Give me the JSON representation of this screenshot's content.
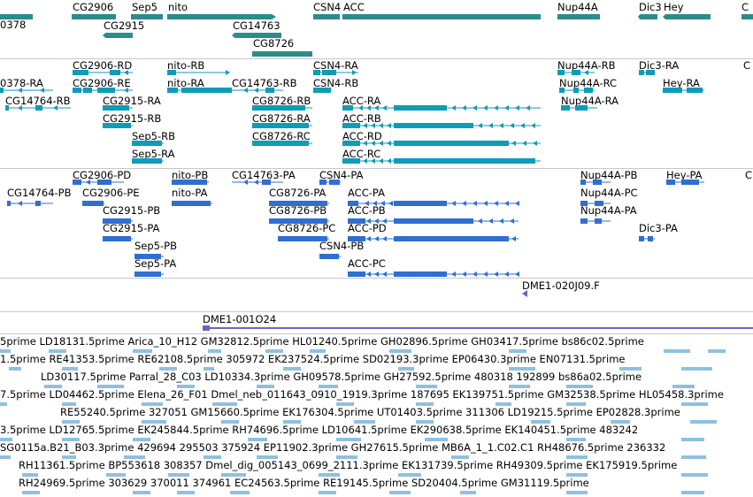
{
  "colors": {
    "gene": "#2e8b8b",
    "transcript": "#0f9cb8",
    "protein": "#2f6fd0",
    "contig": "#7060c0",
    "est": "#8fc0e0"
  },
  "tracks": {
    "genes": {
      "features": [
        {
          "label": "0378"
        },
        {
          "label": "CG2906"
        },
        {
          "label": "Sep5"
        },
        {
          "label": "nito"
        },
        {
          "label": "CSN4"
        },
        {
          "label": "ACC"
        },
        {
          "label": "Nup44A"
        },
        {
          "label": "Dic3"
        },
        {
          "label": "Hey"
        },
        {
          "label": "C"
        },
        {
          "label": "CG2915"
        },
        {
          "label": "CG14763"
        },
        {
          "label": "CG8726"
        }
      ]
    },
    "transcripts": {
      "features": [
        {
          "label": "CG2906-RD"
        },
        {
          "label": "nito-RB"
        },
        {
          "label": "CSN4-RA"
        },
        {
          "label": "Nup44A-RB"
        },
        {
          "label": "Dic3-RA"
        },
        {
          "label": "C"
        },
        {
          "label": "0378-RA"
        },
        {
          "label": "CG2906-RE"
        },
        {
          "label": "nito-RA"
        },
        {
          "label": "CG14763-RB"
        },
        {
          "label": "CSN4-RB"
        },
        {
          "label": "Nup44A-RC"
        },
        {
          "label": "Hey-RA"
        },
        {
          "label": "CG14764-RB"
        },
        {
          "label": "CG2915-RA"
        },
        {
          "label": "CG8726-RB"
        },
        {
          "label": "ACC-RA"
        },
        {
          "label": "Nup44A-RA"
        },
        {
          "label": "CG2915-RB"
        },
        {
          "label": "CG8726-RA"
        },
        {
          "label": "ACC-RB"
        },
        {
          "label": "Sep5-RB"
        },
        {
          "label": "CG8726-RC"
        },
        {
          "label": "ACC-RD"
        },
        {
          "label": "Sep5-RA"
        },
        {
          "label": "ACC-RC"
        }
      ]
    },
    "proteins": {
      "features": [
        {
          "label": "CG2906-PD"
        },
        {
          "label": "nito-PB"
        },
        {
          "label": "CG14763-PA"
        },
        {
          "label": "CSN4-PA"
        },
        {
          "label": "Nup44A-PB"
        },
        {
          "label": "Hey-PA"
        },
        {
          "label": "C"
        },
        {
          "label": "CG14764-PB"
        },
        {
          "label": "CG2906-PE"
        },
        {
          "label": "nito-PA"
        },
        {
          "label": "CG8726-PA"
        },
        {
          "label": "ACC-PA"
        },
        {
          "label": "Nup44A-PC"
        },
        {
          "label": "CG2915-PB"
        },
        {
          "label": "CG8726-PB"
        },
        {
          "label": "ACC-PB"
        },
        {
          "label": "Nup44A-PA"
        },
        {
          "label": "CG2915-PA"
        },
        {
          "label": "CG8726-PC"
        },
        {
          "label": "ACC-PD"
        },
        {
          "label": "Dic3-PA"
        },
        {
          "label": "Sep5-PB"
        },
        {
          "label": "CSN4-PB"
        },
        {
          "label": "Sep5-PA"
        },
        {
          "label": "ACC-PC"
        }
      ]
    },
    "clone": {
      "features": [
        {
          "label": "DME1-020J09.F"
        }
      ]
    },
    "contig": {
      "features": [
        {
          "label": "DME1-001O24"
        }
      ]
    },
    "ests": {
      "rows": [
        "5prime LD18131.5prime Arica_10_H12 GM32812.5prime HL01240.5prime GH02896.5prime GH03417.5prime bs86c02.5prime",
        "1.5prime RE41353.5prime RE62108.5prime 305972 EK237524.5prime SD02193.3prime EP06430.3prime EN07131.5prime",
        "LD30117.5prime Parral_28_C03 LD10334.3prime GH09578.5prime GH27592.5prime 480318 192899 bs86a02.5prime",
        "7.5prime LD04462.5prime Elena_26_F01 Dmel_neb_011643_0910_1919.3prime 187695 EK139751.5prime GM32538.5prime HL05458.3prime",
        "RE55240.5prime 327051 GM15660.5prime EK176304.5prime UT01403.5prime 311306 LD19215.5prime EP02828.3prime",
        "3.5prime LD12765.5prime EK245844.5prime RH74696.5prime LD10641.5prime EK290638.5prime EK140451.5prime 483242",
        "SG0115a.B21_B03.3prime 429694 295503 375924 EP11902.3prime GH27615.5prime MB6A_1_1.C02.C1 RH48676.5prime 236332",
        "RH11361.5prime BP553618 308357 Dmel_dig_005143_0699_2111.3prime EK131739.5prime RH49309.5prime EK175919.5prime",
        "RH24969.5prime 303629 370011 374961 EC24563.5prime RE19145.5prime SD20404.5prime GM31119.5prime"
      ]
    }
  }
}
